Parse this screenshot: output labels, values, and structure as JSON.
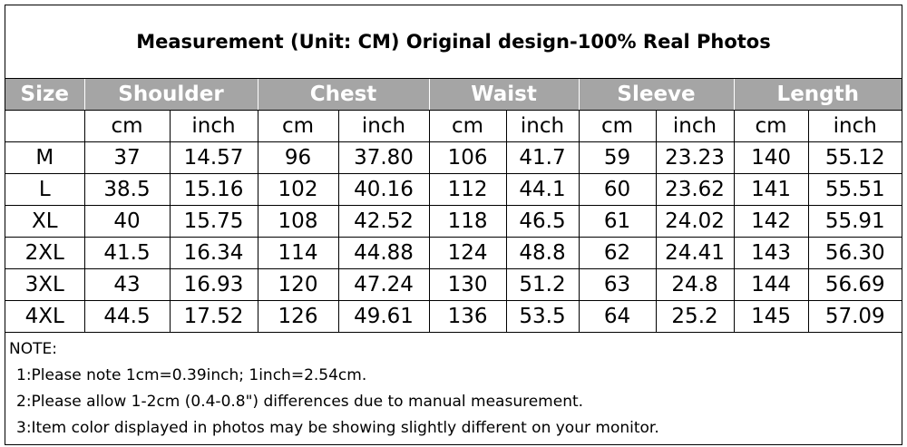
{
  "title": "Measurement (Unit: CM) Original design-100% Real Photos",
  "table": {
    "header": [
      "Size",
      "Shoulder",
      "Chest",
      "Waist",
      "Sleeve",
      "Length"
    ],
    "units": [
      "cm",
      "inch",
      "cm",
      "inch",
      "cm",
      "inch",
      "cm",
      "inch",
      "cm",
      "inch"
    ],
    "rows": [
      [
        "M",
        "37",
        "14.57",
        "96",
        "37.80",
        "106",
        "41.7",
        "59",
        "23.23",
        "140",
        "55.12"
      ],
      [
        "L",
        "38.5",
        "15.16",
        "102",
        "40.16",
        "112",
        "44.1",
        "60",
        "23.62",
        "141",
        "55.51"
      ],
      [
        "XL",
        "40",
        "15.75",
        "108",
        "42.52",
        "118",
        "46.5",
        "61",
        "24.02",
        "142",
        "55.91"
      ],
      [
        "2XL",
        "41.5",
        "16.34",
        "114",
        "44.88",
        "124",
        "48.8",
        "62",
        "24.41",
        "143",
        "56.30"
      ],
      [
        "3XL",
        "43",
        "16.93",
        "120",
        "47.24",
        "130",
        "51.2",
        "63",
        "24.8",
        "144",
        "56.69"
      ],
      [
        "4XL",
        "44.5",
        "17.52",
        "126",
        "49.61",
        "136",
        "53.5",
        "64",
        "25.2",
        "145",
        "57.09"
      ]
    ]
  },
  "notes": {
    "title": "NOTE:",
    "items": [
      "1:Please note 1cm=0.39inch; 1inch=2.54cm.",
      "2:Please allow 1-2cm (0.4-0.8\") differences due to manual measurement.",
      "3:Item color displayed in photos may be showing slightly different on your monitor."
    ]
  }
}
